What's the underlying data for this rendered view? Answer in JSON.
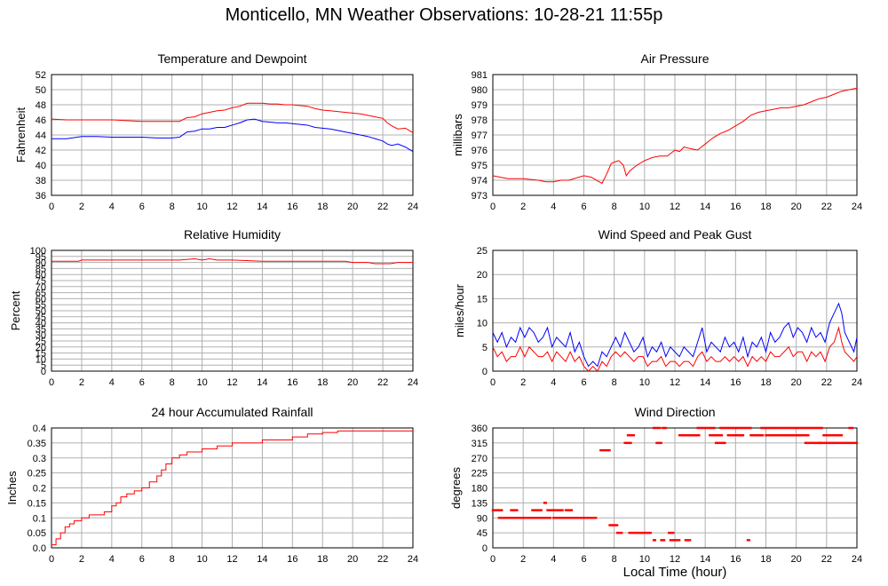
{
  "page": {
    "title": "Monticello, MN Weather Observations: 10-28-21 11:55p",
    "xlabel_bottom": "Local Time (hour)"
  },
  "colors": {
    "red": "#ff0000",
    "blue": "#0000ff",
    "grid": "#b0b0b0",
    "axis": "#000000"
  },
  "chart_data": [
    {
      "id": "temp",
      "type": "line",
      "title": "Temperature and Dewpoint",
      "ylabel": "Fahrenheit",
      "xlim": [
        0,
        24
      ],
      "ylim": [
        36,
        52
      ],
      "yticks": [
        36,
        38,
        40,
        42,
        44,
        46,
        48,
        50,
        52
      ],
      "xticks": [
        0,
        2,
        4,
        6,
        8,
        10,
        12,
        14,
        16,
        18,
        20,
        22,
        24
      ],
      "series": [
        {
          "color": "red",
          "x": [
            0,
            1,
            2,
            3,
            4,
            5,
            6,
            7,
            8,
            8.5,
            9,
            9.5,
            10,
            10.5,
            11,
            11.5,
            12,
            12.5,
            13,
            13.5,
            14,
            14.5,
            15,
            15.5,
            16,
            16.5,
            17,
            17.5,
            18,
            18.5,
            19,
            19.5,
            20,
            20.5,
            21,
            21.5,
            22,
            22.3,
            22.6,
            23,
            23.5,
            24
          ],
          "y": [
            46.1,
            46,
            46,
            46,
            46,
            45.9,
            45.8,
            45.8,
            45.8,
            45.8,
            46.3,
            46.4,
            46.8,
            47,
            47.2,
            47.3,
            47.6,
            47.8,
            48.2,
            48.2,
            48.2,
            48.1,
            48.1,
            48.0,
            48.0,
            47.9,
            47.8,
            47.5,
            47.3,
            47.2,
            47.1,
            47.0,
            46.9,
            46.8,
            46.6,
            46.4,
            46.2,
            45.6,
            45.2,
            44.8,
            44.9,
            44.3
          ]
        },
        {
          "color": "blue",
          "x": [
            0,
            1,
            2,
            3,
            4,
            5,
            6,
            7,
            8,
            8.5,
            9,
            9.5,
            10,
            10.5,
            11,
            11.5,
            12,
            12.5,
            13,
            13.5,
            14,
            14.5,
            15,
            15.5,
            16,
            16.5,
            17,
            17.5,
            18,
            18.5,
            19,
            19.5,
            20,
            20.5,
            21,
            21.5,
            22,
            22.3,
            22.6,
            23,
            23.5,
            24
          ],
          "y": [
            43.5,
            43.5,
            43.8,
            43.8,
            43.7,
            43.7,
            43.7,
            43.6,
            43.6,
            43.7,
            44.4,
            44.5,
            44.8,
            44.8,
            45.0,
            45.0,
            45.3,
            45.6,
            46.0,
            46.1,
            45.8,
            45.7,
            45.6,
            45.6,
            45.5,
            45.4,
            45.3,
            45.0,
            44.9,
            44.8,
            44.6,
            44.4,
            44.2,
            44.0,
            43.8,
            43.5,
            43.2,
            42.8,
            42.6,
            42.8,
            42.4,
            41.8
          ]
        }
      ]
    },
    {
      "id": "pressure",
      "type": "line",
      "title": "Air Pressure",
      "ylabel": "millibars",
      "xlim": [
        0,
        24
      ],
      "ylim": [
        973,
        981
      ],
      "yticks": [
        973,
        974,
        975,
        976,
        977,
        978,
        979,
        980,
        981
      ],
      "xticks": [
        0,
        2,
        4,
        6,
        8,
        10,
        12,
        14,
        16,
        18,
        20,
        22,
        24
      ],
      "series": [
        {
          "color": "red",
          "x": [
            0,
            0.5,
            1,
            2,
            3,
            3.5,
            4,
            4.5,
            5,
            6,
            6.5,
            7,
            7.2,
            7.5,
            7.8,
            8,
            8.3,
            8.6,
            8.8,
            9,
            9.5,
            10,
            10.5,
            11,
            11.5,
            12,
            12.3,
            12.6,
            13,
            13.5,
            14,
            14.5,
            15,
            15.5,
            16,
            16.5,
            17,
            17.5,
            18,
            18.5,
            19,
            19.5,
            20,
            20.5,
            21,
            21.5,
            22,
            22.5,
            23,
            23.5,
            24
          ],
          "y": [
            974.3,
            974.2,
            974.1,
            974.1,
            974.0,
            973.9,
            973.9,
            974.0,
            974.0,
            974.3,
            974.2,
            973.9,
            973.8,
            974.4,
            975.1,
            975.2,
            975.3,
            975.0,
            974.3,
            974.6,
            975.0,
            975.3,
            975.5,
            975.6,
            975.6,
            976.0,
            975.9,
            976.2,
            976.1,
            976.0,
            976.4,
            976.8,
            977.1,
            977.3,
            977.6,
            977.9,
            978.3,
            978.5,
            978.6,
            978.7,
            978.8,
            978.8,
            978.9,
            979.0,
            979.2,
            979.4,
            979.5,
            979.7,
            979.9,
            980.0,
            980.1
          ]
        }
      ]
    },
    {
      "id": "humidity",
      "type": "line",
      "title": "Relative Humidity",
      "ylabel": "Percent",
      "xlim": [
        0,
        24
      ],
      "ylim": [
        0,
        100
      ],
      "yticks": [
        0,
        5,
        10,
        15,
        20,
        25,
        30,
        35,
        40,
        45,
        50,
        55,
        60,
        65,
        70,
        75,
        80,
        85,
        90,
        95,
        100
      ],
      "xticks": [
        0,
        2,
        4,
        6,
        8,
        10,
        12,
        14,
        16,
        18,
        20,
        22,
        24
      ],
      "series": [
        {
          "color": "red",
          "x": [
            0,
            1.8,
            2,
            8,
            8.5,
            9.5,
            10,
            10.5,
            11,
            12,
            14,
            19.5,
            20,
            21,
            21.5,
            22.5,
            23,
            24
          ],
          "y": [
            91,
            91,
            92,
            92,
            92,
            93,
            92,
            93,
            92,
            92,
            91,
            91,
            90,
            90,
            89,
            89,
            90,
            90
          ]
        }
      ]
    },
    {
      "id": "wind",
      "type": "line",
      "title": "Wind Speed and Peak Gust",
      "ylabel": "miles/hour",
      "xlim": [
        0,
        24
      ],
      "ylim": [
        0,
        25
      ],
      "yticks": [
        0,
        5,
        10,
        15,
        20,
        25
      ],
      "xticks": [
        0,
        2,
        4,
        6,
        8,
        10,
        12,
        14,
        16,
        18,
        20,
        22,
        24
      ],
      "series": [
        {
          "color": "blue",
          "x": [
            0,
            0.3,
            0.6,
            0.9,
            1.2,
            1.5,
            1.8,
            2.1,
            2.4,
            2.7,
            3,
            3.3,
            3.6,
            3.9,
            4.2,
            4.5,
            4.8,
            5.1,
            5.4,
            5.7,
            6,
            6.3,
            6.6,
            6.9,
            7.2,
            7.5,
            7.8,
            8.1,
            8.4,
            8.7,
            9,
            9.3,
            9.6,
            9.9,
            10.2,
            10.5,
            10.8,
            11.1,
            11.4,
            11.7,
            12,
            12.3,
            12.6,
            12.9,
            13.2,
            13.5,
            13.8,
            14.1,
            14.4,
            14.7,
            15,
            15.3,
            15.6,
            15.9,
            16.2,
            16.5,
            16.8,
            17.1,
            17.4,
            17.7,
            18,
            18.3,
            18.6,
            18.9,
            19.2,
            19.5,
            19.8,
            20.1,
            20.4,
            20.7,
            21,
            21.3,
            21.6,
            21.9,
            22.2,
            22.5,
            22.8,
            23,
            23.2,
            23.5,
            23.8,
            24
          ],
          "y": [
            8,
            6,
            8,
            5,
            7,
            6,
            9,
            7,
            9,
            8,
            6,
            7,
            9,
            5,
            7,
            6,
            5,
            8,
            4,
            6,
            3,
            1,
            2,
            1,
            4,
            3,
            5,
            7,
            5,
            8,
            6,
            4,
            5,
            7,
            3,
            5,
            4,
            6,
            3,
            5,
            4,
            3,
            5,
            4,
            3,
            6,
            9,
            4,
            6,
            5,
            4,
            7,
            5,
            6,
            4,
            7,
            3,
            6,
            5,
            7,
            4,
            8,
            6,
            7,
            9,
            10,
            7,
            9,
            8,
            6,
            9,
            7,
            8,
            6,
            10,
            12,
            14,
            12,
            8,
            6,
            4,
            7
          ]
        },
        {
          "color": "red",
          "x": [
            0,
            0.3,
            0.6,
            0.9,
            1.2,
            1.5,
            1.8,
            2.1,
            2.4,
            2.7,
            3,
            3.3,
            3.6,
            3.9,
            4.2,
            4.5,
            4.8,
            5.1,
            5.4,
            5.7,
            6,
            6.3,
            6.6,
            6.9,
            7.2,
            7.5,
            7.8,
            8.1,
            8.4,
            8.7,
            9,
            9.3,
            9.6,
            9.9,
            10.2,
            10.5,
            10.8,
            11.1,
            11.4,
            11.7,
            12,
            12.3,
            12.6,
            12.9,
            13.2,
            13.5,
            13.8,
            14.1,
            14.4,
            14.7,
            15,
            15.3,
            15.6,
            15.9,
            16.2,
            16.5,
            16.8,
            17.1,
            17.4,
            17.7,
            18,
            18.3,
            18.6,
            18.9,
            19.2,
            19.5,
            19.8,
            20.1,
            20.4,
            20.7,
            21,
            21.3,
            21.6,
            21.9,
            22.2,
            22.5,
            22.8,
            23,
            23.2,
            23.5,
            23.8,
            24
          ],
          "y": [
            5,
            3,
            4,
            2,
            3,
            3,
            5,
            3,
            5,
            4,
            3,
            3,
            4,
            2,
            4,
            3,
            2,
            4,
            2,
            3,
            1,
            0,
            1,
            0,
            2,
            1,
            3,
            4,
            3,
            4,
            3,
            2,
            3,
            3,
            1,
            2,
            2,
            3,
            1,
            2,
            2,
            1,
            2,
            2,
            1,
            3,
            4,
            2,
            3,
            2,
            2,
            3,
            2,
            3,
            2,
            3,
            1,
            3,
            2,
            3,
            2,
            4,
            3,
            3,
            4,
            5,
            3,
            4,
            4,
            2,
            4,
            3,
            4,
            2,
            5,
            6,
            9,
            6,
            4,
            3,
            2,
            3
          ]
        }
      ]
    },
    {
      "id": "rain",
      "type": "line",
      "title": "24 hour Accumulated Rainfall",
      "ylabel": "Inches",
      "xlim": [
        0,
        24
      ],
      "ylim": [
        0,
        0.4
      ],
      "yticks": [
        0,
        0.05,
        0.1,
        0.15,
        0.2,
        0.25,
        0.3,
        0.35,
        0.4
      ],
      "ytick_labels": [
        "0.0",
        "0.05",
        "0.1",
        "0.15",
        "0.2",
        "0.25",
        "0.3",
        "0.35",
        "0.4"
      ],
      "xticks": [
        0,
        2,
        4,
        6,
        8,
        10,
        12,
        14,
        16,
        18,
        20,
        22,
        24
      ],
      "series": [
        {
          "color": "red",
          "step": true,
          "x": [
            0,
            0.3,
            0.6,
            0.9,
            1.2,
            1.5,
            2,
            2.5,
            3,
            3.5,
            4,
            4.3,
            4.6,
            5,
            5.5,
            6,
            6.5,
            7,
            7.3,
            7.6,
            8,
            8.5,
            9,
            9.5,
            10,
            10.5,
            11,
            12,
            13,
            14,
            16,
            17,
            18,
            19,
            24
          ],
          "y": [
            0.01,
            0.03,
            0.05,
            0.07,
            0.08,
            0.09,
            0.1,
            0.11,
            0.11,
            0.12,
            0.14,
            0.15,
            0.17,
            0.18,
            0.19,
            0.2,
            0.22,
            0.24,
            0.26,
            0.28,
            0.3,
            0.31,
            0.32,
            0.32,
            0.33,
            0.33,
            0.34,
            0.35,
            0.35,
            0.36,
            0.37,
            0.38,
            0.385,
            0.39,
            0.39
          ]
        }
      ]
    },
    {
      "id": "direction",
      "type": "scatter",
      "title": "Wind Direction",
      "ylabel": "degrees",
      "xlim": [
        0,
        24
      ],
      "ylim": [
        0,
        360
      ],
      "yticks": [
        0,
        45,
        90,
        135,
        180,
        225,
        270,
        315,
        360
      ],
      "xticks": [
        0,
        2,
        4,
        6,
        8,
        10,
        12,
        14,
        16,
        18,
        20,
        22,
        24
      ],
      "series": [
        {
          "color": "red",
          "segments": [
            [
              0,
              0.6,
              113
            ],
            [
              0.4,
              1.2,
              90
            ],
            [
              1.2,
              1.6,
              113
            ],
            [
              1.2,
              3.2,
              90
            ],
            [
              2.6,
              3.2,
              113
            ],
            [
              3.2,
              3.8,
              90
            ],
            [
              3.4,
              3.5,
              135
            ],
            [
              3.6,
              4.6,
              113
            ],
            [
              4.0,
              6.8,
              90
            ],
            [
              4.8,
              5.2,
              113
            ],
            [
              7.1,
              7.7,
              293
            ],
            [
              7.7,
              8.2,
              68
            ],
            [
              8.2,
              8.5,
              45
            ],
            [
              8.7,
              9.1,
              315
            ],
            [
              8.9,
              9.3,
              338
            ],
            [
              9.0,
              10.4,
              45
            ],
            [
              10.6,
              10.7,
              23
            ],
            [
              10.6,
              11.0,
              360
            ],
            [
              10.8,
              11.1,
              315
            ],
            [
              11.1,
              11.3,
              23
            ],
            [
              11.2,
              11.4,
              360
            ],
            [
              11.6,
              11.9,
              45
            ],
            [
              11.7,
              12.3,
              23
            ],
            [
              12.3,
              13.6,
              338
            ],
            [
              12.7,
              13.0,
              23
            ],
            [
              13.5,
              14.6,
              360
            ],
            [
              14.3,
              15.1,
              338
            ],
            [
              14.7,
              15.3,
              315
            ],
            [
              15.0,
              17.0,
              360
            ],
            [
              15.5,
              16.5,
              338
            ],
            [
              16.8,
              16.9,
              23
            ],
            [
              17.0,
              17.8,
              338
            ],
            [
              17.7,
              21.7,
              360
            ],
            [
              18.0,
              20.8,
              338
            ],
            [
              20.6,
              21.6,
              315
            ],
            [
              21.5,
              23.6,
              315
            ],
            [
              21.8,
              23.0,
              338
            ],
            [
              23.5,
              23.7,
              360
            ],
            [
              23.7,
              24,
              315
            ]
          ]
        }
      ]
    }
  ]
}
